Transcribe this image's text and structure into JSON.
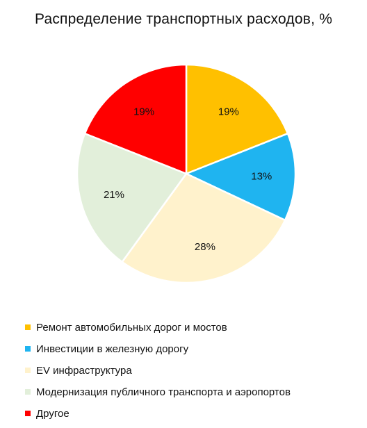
{
  "chart_data": {
    "type": "pie",
    "title": "Распределение транспортных расходов, %",
    "categories": [
      "Ремонт автомобильных дорог и мостов",
      "Инвестиции в железную дорогу",
      "EV инфраструктура",
      "Модернизация публичного транспорта и аэропортов",
      "Другое"
    ],
    "values": [
      19,
      13,
      28,
      21,
      19
    ],
    "data_labels": [
      "19%",
      "13%",
      "28%",
      "21%",
      "19%"
    ],
    "colors": [
      "#FFC000",
      "#1FB4F0",
      "#FFF2CC",
      "#E2EFDA",
      "#FF0000"
    ],
    "start": "12 o'clock",
    "direction": "clockwise",
    "legend_position": "bottom"
  }
}
